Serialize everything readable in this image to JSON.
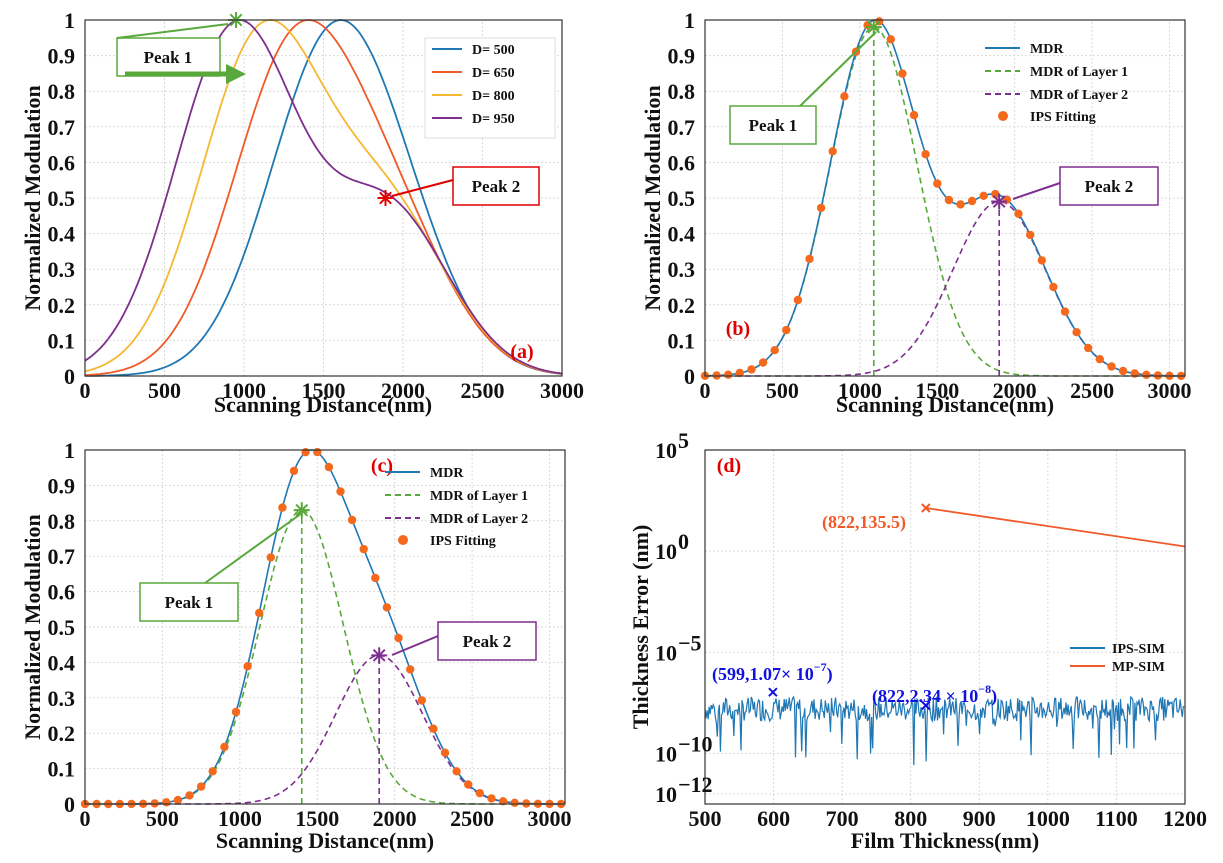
{
  "colors": {
    "blue": "#1f77b4",
    "orange": "#f05a28",
    "yellow": "#f7b731",
    "purple": "#7e2f8e",
    "green": "#58a83b",
    "dot": "#f5691d",
    "red": "#e00000",
    "annotation_blue": "#1010e0"
  },
  "chart_data": [
    {
      "id": "a",
      "type": "line",
      "panel_label": "(a)",
      "xlabel": "Scanning Distance(nm)",
      "ylabel": "Normalized Modulation",
      "xlim": [
        0,
        3000
      ],
      "ylim": [
        0,
        1
      ],
      "xticks": [
        0,
        500,
        1000,
        1500,
        2000,
        2500,
        3000
      ],
      "yticks": [
        0,
        0.1,
        0.2,
        0.3,
        0.4,
        0.5,
        0.6,
        0.7,
        0.8,
        0.9,
        1
      ],
      "xtick_labels": [
        "0",
        "500",
        "1000",
        "1500",
        "2000",
        "2500",
        "3000"
      ],
      "ytick_labels": [
        "0",
        "0.1",
        "0.2",
        "0.3",
        "0.4",
        "0.5",
        "0.6",
        "0.7",
        "0.8",
        "0.9",
        "1"
      ],
      "legend": "top-right",
      "series": [
        {
          "name": "D= 500",
          "color": "#1f77b4",
          "model": {
            "peak1_center": 1500,
            "sigma1": 380,
            "peak2_center": 1900,
            "sigma2": 380,
            "amplitude_ratio": 0.48
          }
        },
        {
          "name": "D= 650",
          "color": "#f05a28",
          "model": {
            "peak1_center": 1300,
            "sigma1": 380,
            "peak2_center": 1900,
            "sigma2": 380,
            "amplitude_ratio": 0.48
          }
        },
        {
          "name": "D= 800",
          "color": "#f7b731",
          "model": {
            "peak1_center": 1110,
            "sigma1": 380,
            "peak2_center": 1900,
            "sigma2": 380,
            "amplitude_ratio": 0.48
          }
        },
        {
          "name": "D= 950",
          "color": "#7e2f8e",
          "model": {
            "peak1_center": 950,
            "sigma1": 380,
            "peak2_center": 1900,
            "sigma2": 380,
            "amplitude_ratio": 0.48
          }
        }
      ],
      "markers": [
        {
          "label": "Peak 1",
          "x": 950,
          "y": 1.0,
          "color": "#58a83b"
        },
        {
          "label": "Peak 2",
          "x": 1890,
          "y": 0.5,
          "color": "#e00000"
        }
      ],
      "callouts": [
        {
          "text": "Peak 1",
          "border": "#58a83b"
        },
        {
          "text": "Peak 2",
          "border": "#e00000"
        }
      ]
    },
    {
      "id": "b",
      "type": "line",
      "panel_label": "(b)",
      "xlabel": "Scanning Distance(nm)",
      "ylabel": "Normalized Modulation",
      "xlim": [
        0,
        3100
      ],
      "ylim": [
        0,
        1
      ],
      "xticks": [
        0,
        500,
        1000,
        1500,
        2000,
        2500,
        3000
      ],
      "yticks": [
        0,
        0.1,
        0.2,
        0.3,
        0.4,
        0.5,
        0.6,
        0.7,
        0.8,
        0.9,
        1
      ],
      "xtick_labels": [
        "0",
        "500",
        "1000",
        "1500",
        "2000",
        "2500",
        "3000"
      ],
      "ytick_labels": [
        "0",
        "0.1",
        "0.2",
        "0.3",
        "0.4",
        "0.5",
        "0.6",
        "0.7",
        "0.8",
        "0.9",
        "1"
      ],
      "legend": "top-right",
      "layer1": {
        "center": 1090,
        "sigma": 280,
        "amplitude": 0.98
      },
      "layer2": {
        "center": 1900,
        "sigma": 300,
        "amplitude": 0.49
      },
      "fit_step": 75,
      "series": [
        {
          "name": "MDR",
          "color": "#1f77b4",
          "style": "solid"
        },
        {
          "name": "MDR of Layer 1",
          "color": "#58a83b",
          "style": "dashed"
        },
        {
          "name": "MDR of Layer 2",
          "color": "#7e2f8e",
          "style": "dashed"
        },
        {
          "name": "IPS Fitting",
          "color": "#f5691d",
          "style": "dots"
        }
      ],
      "markers": [
        {
          "label": "Peak 1",
          "x": 1090,
          "y": 0.98,
          "color": "#58a83b"
        },
        {
          "label": "Peak 2",
          "x": 1900,
          "y": 0.49,
          "color": "#7e2f8e"
        }
      ],
      "callouts": [
        {
          "text": "Peak 1",
          "border": "#58a83b"
        },
        {
          "text": "Peak 2",
          "border": "#7e2f8e"
        }
      ]
    },
    {
      "id": "c",
      "type": "line",
      "panel_label": "(c)",
      "xlabel": "Scanning Distance(nm)",
      "ylabel": "Normalized Modulation",
      "xlim": [
        0,
        3100
      ],
      "ylim": [
        0,
        1
      ],
      "xticks": [
        0,
        500,
        1000,
        1500,
        2000,
        2500,
        3000
      ],
      "yticks": [
        0,
        0.1,
        0.2,
        0.3,
        0.4,
        0.5,
        0.6,
        0.7,
        0.8,
        0.9,
        1
      ],
      "xtick_labels": [
        "0",
        "500",
        "1000",
        "1500",
        "2000",
        "2500",
        "3000"
      ],
      "ytick_labels": [
        "0",
        "0.1",
        "0.2",
        "0.3",
        "0.4",
        "0.5",
        "0.6",
        "0.7",
        "0.8",
        "0.9",
        "1"
      ],
      "legend": "top-right",
      "layer1": {
        "center": 1400,
        "sigma": 270,
        "amplitude": 0.83
      },
      "layer2": {
        "center": 1900,
        "sigma": 280,
        "amplitude": 0.42
      },
      "fit_step": 75,
      "series": [
        {
          "name": "MDR",
          "color": "#1f77b4",
          "style": "solid"
        },
        {
          "name": "MDR of Layer 1",
          "color": "#58a83b",
          "style": "dashed"
        },
        {
          "name": "MDR of Layer 2",
          "color": "#7e2f8e",
          "style": "dashed"
        },
        {
          "name": "IPS Fitting",
          "color": "#f5691d",
          "style": "dots"
        }
      ],
      "markers": [
        {
          "label": "Peak 1",
          "x": 1400,
          "y": 0.83,
          "color": "#58a83b"
        },
        {
          "label": "Peak 2",
          "x": 1900,
          "y": 0.42,
          "color": "#7e2f8e"
        }
      ],
      "callouts": [
        {
          "text": "Peak 1",
          "border": "#58a83b"
        },
        {
          "text": "Peak 2",
          "border": "#7e2f8e"
        }
      ]
    },
    {
      "id": "d",
      "type": "line",
      "panel_label": "(d)",
      "xlabel": "Film Thickness(nm)",
      "ylabel": "Thickness Error (nm)",
      "xlim": [
        500,
        1200
      ],
      "ylim_log10": [
        -12.5,
        5
      ],
      "xticks": [
        500,
        600,
        700,
        800,
        900,
        1000,
        1100,
        1200
      ],
      "xtick_labels": [
        "500",
        "600",
        "700",
        "800",
        "900",
        "1000",
        "1100",
        "1200"
      ],
      "ytick_exponents": [
        5,
        0,
        -5,
        -10,
        -12
      ],
      "ytick_base": "10",
      "ytick_exponent_labels": [
        "5",
        "0",
        "−5",
        "−10",
        "−12"
      ],
      "legend": "center-right",
      "series": [
        {
          "name": "IPS-SIM",
          "color": "#1f77b4",
          "log10_center": -7.8,
          "log10_spread": 0.6,
          "start": 500,
          "end": 1200
        },
        {
          "name": "MP-SIM",
          "color": "#f05a28",
          "start": [
            822,
            135.5
          ],
          "end": [
            1200,
            1.7
          ]
        }
      ],
      "annotations": [
        {
          "text": "(822,135.5)",
          "x": 822,
          "y": 135.5,
          "color": "#f05a28"
        },
        {
          "text": "(599,1.07× 10",
          "exp": "−7",
          "close": ")",
          "x": 599,
          "y": 1.07e-07,
          "color": "#1010e0"
        },
        {
          "text": "(822,2.34 × 10",
          "exp": "−8",
          "close": ")",
          "x": 822,
          "y": 2.34e-08,
          "color": "#1010e0"
        }
      ]
    }
  ]
}
